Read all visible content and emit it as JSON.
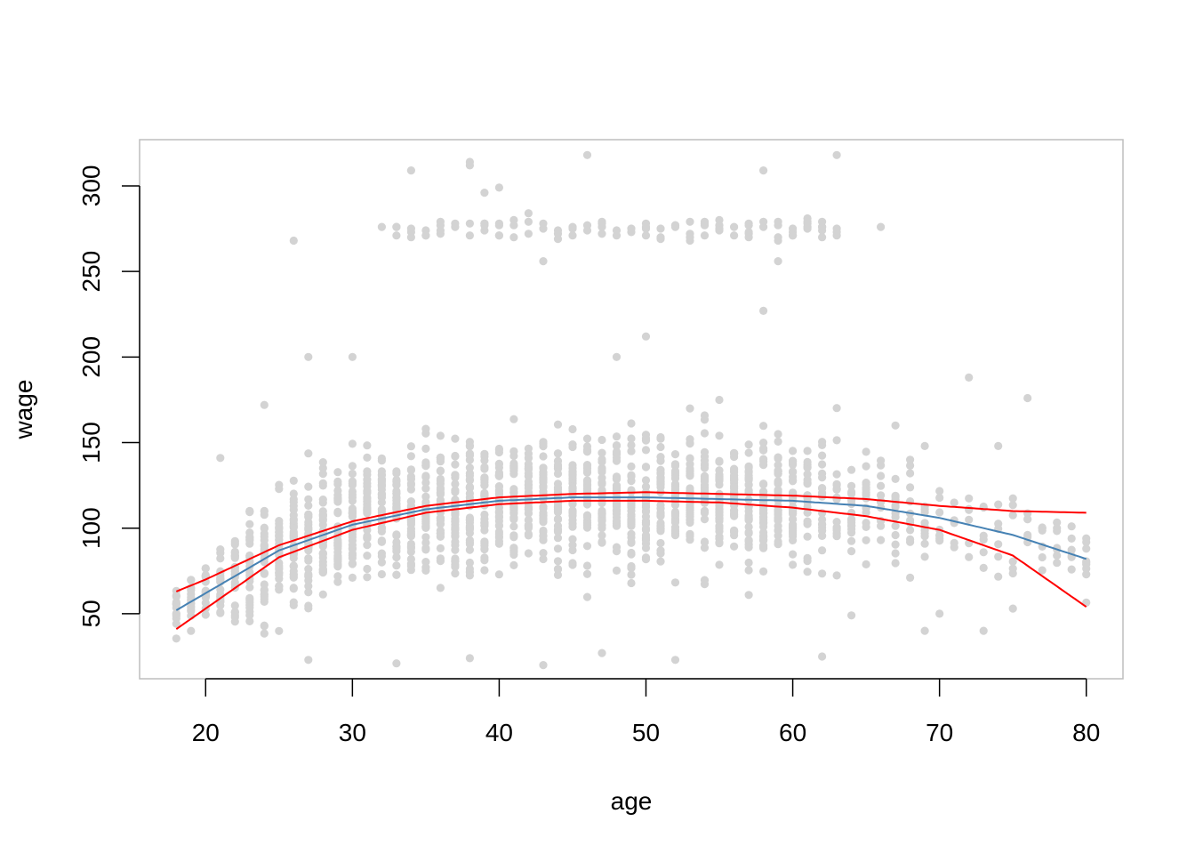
{
  "chart_data": {
    "type": "scatter",
    "title": "",
    "xlabel": "age",
    "ylabel": "wage",
    "xlim": [
      15.5,
      82.5
    ],
    "ylim": [
      12,
      327
    ],
    "xticks": [
      20,
      30,
      40,
      50,
      60,
      70,
      80
    ],
    "yticks": [
      50,
      100,
      150,
      200,
      250,
      300
    ],
    "grid": false,
    "legend": "none",
    "colors": {
      "points": "#D3D3D3",
      "fit": "#4682B4",
      "band": "#FF0000",
      "frame": "#BEBEBE"
    },
    "points_sampled": {
      "x_range": [
        18,
        80
      ],
      "dense_band": {
        "wage_low": 45,
        "wage_high": 165
      },
      "upper_cluster": {
        "ages": [
          33,
          63
        ],
        "wage_range": [
          255,
          320
        ]
      }
    },
    "series": [
      {
        "role": "fit",
        "x": [
          18,
          20,
          25,
          30,
          35,
          40,
          45,
          50,
          55,
          60,
          65,
          70,
          75,
          80
        ],
        "y": [
          52,
          62,
          87,
          102,
          111,
          116,
          118,
          118,
          117,
          116,
          113,
          106,
          96,
          82
        ]
      },
      {
        "role": "upper-band",
        "x": [
          18,
          20,
          25,
          30,
          35,
          40,
          45,
          50,
          55,
          60,
          65,
          70,
          75,
          80
        ],
        "y": [
          63,
          70,
          90,
          104,
          113,
          118,
          120,
          121,
          120,
          119,
          117,
          113,
          110,
          109
        ]
      },
      {
        "role": "lower-band",
        "x": [
          18,
          20,
          25,
          30,
          35,
          40,
          45,
          50,
          55,
          60,
          65,
          70,
          75,
          80
        ],
        "y": [
          41,
          53,
          83,
          99,
          109,
          114,
          116,
          116,
          115,
          112,
          107,
          99,
          84,
          54
        ]
      }
    ],
    "outliers": [
      [
        26,
        268
      ],
      [
        34,
        309
      ],
      [
        38,
        312
      ],
      [
        38,
        314
      ],
      [
        39,
        296
      ],
      [
        40,
        299
      ],
      [
        42,
        284
      ],
      [
        43,
        256
      ],
      [
        46,
        318
      ],
      [
        58,
        309
      ],
      [
        59,
        256
      ],
      [
        61,
        281
      ],
      [
        63,
        318
      ],
      [
        66,
        276
      ],
      [
        58,
        227
      ],
      [
        50,
        212
      ],
      [
        48,
        200
      ],
      [
        27,
        200
      ],
      [
        30,
        200
      ],
      [
        72,
        188
      ],
      [
        76,
        176
      ],
      [
        24,
        172
      ],
      [
        21,
        141
      ],
      [
        74,
        148
      ],
      [
        69,
        148
      ],
      [
        27,
        23
      ],
      [
        33,
        21
      ],
      [
        43,
        20
      ],
      [
        52,
        23
      ],
      [
        62,
        25
      ],
      [
        47,
        27
      ],
      [
        38,
        24
      ],
      [
        70,
        50
      ],
      [
        73,
        40
      ],
      [
        69,
        40
      ],
      [
        75,
        53
      ],
      [
        64,
        49
      ],
      [
        33,
        276
      ],
      [
        32,
        276
      ],
      [
        57,
        277
      ],
      [
        62,
        279
      ],
      [
        68,
        140
      ],
      [
        67,
        160
      ],
      [
        80,
        94
      ],
      [
        80,
        88
      ],
      [
        80,
        80
      ],
      [
        77,
        100
      ],
      [
        78,
        100
      ]
    ]
  }
}
